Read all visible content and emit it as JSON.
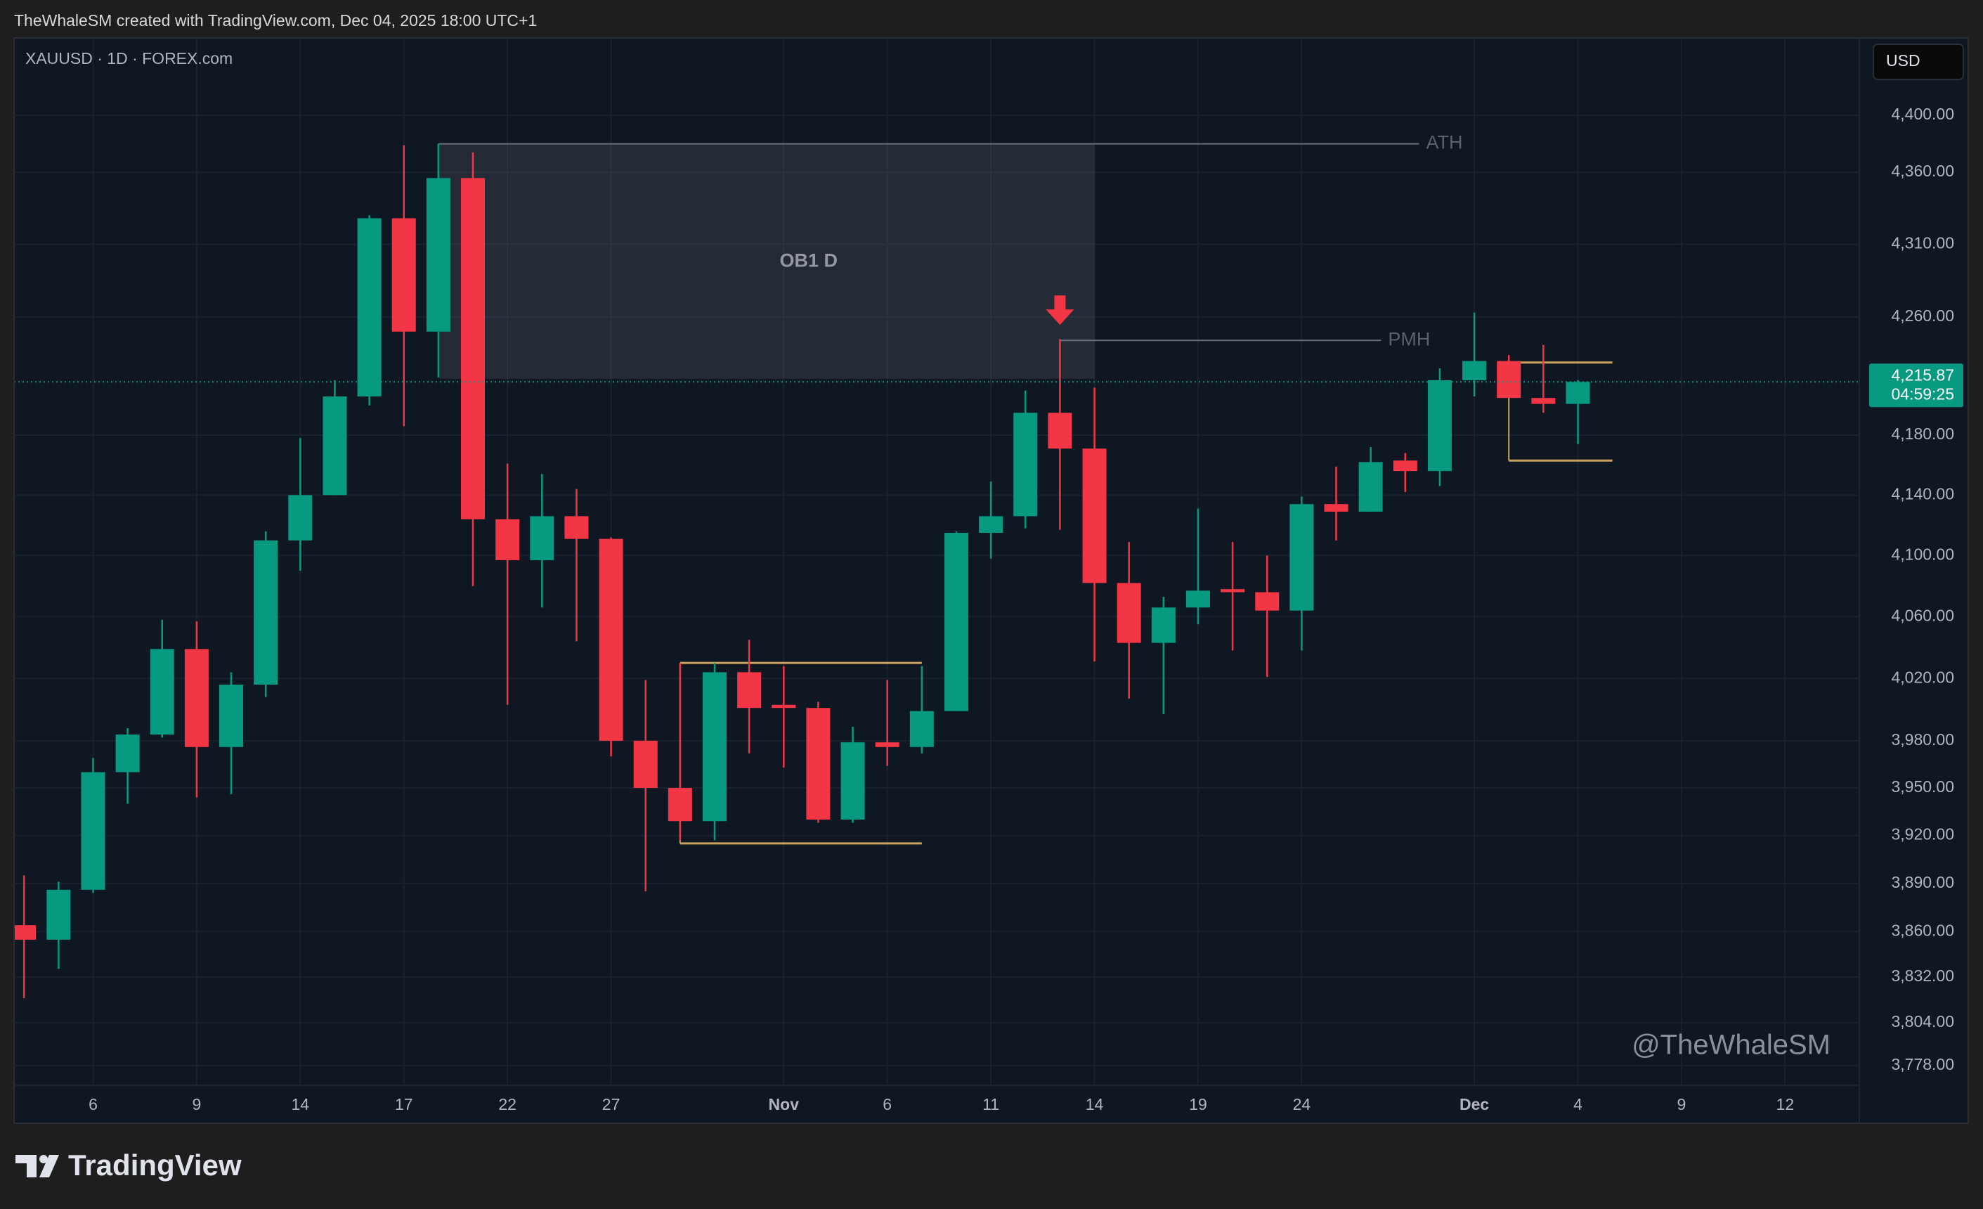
{
  "header": "TheWhaleSM created with TradingView.com, Dec 04, 2025 18:00 UTC+1",
  "footer_logo": "TradingView",
  "chart_data": {
    "type": "candlestick",
    "title": "XAUUSD · 1D · FOREX.com",
    "currency_button": "USD",
    "watermark": "@TheWhaleSM",
    "log_scale": true,
    "grid": true,
    "up_color": "#089981",
    "down_color": "#f23645",
    "categories": [
      null,
      null,
      "6",
      null,
      null,
      "9",
      null,
      null,
      "14",
      null,
      null,
      "17",
      null,
      null,
      "22",
      null,
      null,
      "27",
      null,
      null,
      null,
      null,
      "Nov",
      null,
      null,
      "6",
      null,
      null,
      "11",
      null,
      null,
      "14",
      null,
      null,
      "19",
      null,
      null,
      "24",
      null,
      null,
      null,
      null,
      "Dec",
      null,
      null,
      "4",
      null,
      null,
      "9",
      null,
      null,
      "12"
    ],
    "open": [
      3864,
      3855,
      3886,
      3960,
      3984,
      4039,
      3976,
      4016,
      4110,
      4140,
      4206,
      4328,
      4250,
      4356,
      4124,
      4097,
      4126,
      4111,
      3980,
      3950,
      3929,
      4024,
      4003,
      4001,
      3930,
      3979,
      3976,
      3999,
      4115,
      4126,
      4195,
      4171,
      4082,
      4043,
      4066,
      4078,
      4076,
      4064,
      4134,
      4129,
      4163,
      4156,
      4217,
      4230,
      4205,
      4201,
      null,
      null,
      null,
      null,
      null,
      null
    ],
    "high": [
      3895,
      3891,
      3969,
      3988,
      4058,
      4057,
      4024,
      4116,
      4178,
      4217,
      4330,
      4379,
      4380,
      4374,
      4161,
      4154,
      4144,
      4112,
      4019,
      4030,
      4030,
      4045,
      4028,
      4005,
      3989,
      4019,
      4028,
      4116,
      4149,
      4210,
      4245,
      4212,
      4109,
      4073,
      4131,
      4109,
      4100,
      4139,
      4159,
      4172,
      4168,
      4225,
      4263,
      4234,
      4241,
      4217,
      null,
      null,
      null,
      null,
      null,
      null
    ],
    "low": [
      3819,
      3837,
      3884,
      3940,
      3982,
      3944,
      3946,
      4008,
      4090,
      4140,
      4200,
      4186,
      4219,
      4080,
      4003,
      4066,
      4044,
      3970,
      3885,
      3917,
      3917,
      3972,
      3963,
      3928,
      3928,
      3964,
      3972,
      3999,
      4098,
      4118,
      4117,
      4031,
      4007,
      3997,
      4055,
      4038,
      4021,
      4038,
      4110,
      4129,
      4142,
      4146,
      4206,
      4205,
      4195,
      4174,
      null,
      null,
      null,
      null,
      null,
      null
    ],
    "close": [
      3855,
      3886,
      3960,
      3984,
      4039,
      3976,
      4016,
      4110,
      4140,
      4206,
      4328,
      4250,
      4356,
      4124,
      4097,
      4126,
      4111,
      3980,
      3950,
      3929,
      4024,
      4001,
      4001,
      3930,
      3979,
      3976,
      3999,
      4115,
      4126,
      4195,
      4171,
      4082,
      4043,
      4066,
      4077,
      4076,
      4064,
      4134,
      4129,
      4162,
      4156,
      4217,
      4230,
      4205,
      4201,
      4215.87,
      null,
      null,
      null,
      null,
      null,
      null
    ],
    "current_price": {
      "value": 4215.87,
      "label": "4,215.87"
    },
    "countdown": "04:59:25",
    "ylim": [
      3766,
      4455
    ],
    "yticks": [
      {
        "value": 4400,
        "label": "4,400.00"
      },
      {
        "value": 4360,
        "label": "4,360.00"
      },
      {
        "value": 4310,
        "label": "4,310.00"
      },
      {
        "value": 4260,
        "label": "4,260.00"
      },
      {
        "value": 4180,
        "label": "4,180.00"
      },
      {
        "value": 4140,
        "label": "4,140.00"
      },
      {
        "value": 4100,
        "label": "4,100.00"
      },
      {
        "value": 4060,
        "label": "4,060.00"
      },
      {
        "value": 4020,
        "label": "4,020.00"
      },
      {
        "value": 3980,
        "label": "3,980.00"
      },
      {
        "value": 3950,
        "label": "3,950.00"
      },
      {
        "value": 3920,
        "label": "3,920.00"
      },
      {
        "value": 3890,
        "label": "3,890.00"
      },
      {
        "value": 3860,
        "label": "3,860.00"
      },
      {
        "value": 3832,
        "label": "3,832.00"
      },
      {
        "value": 3804,
        "label": "3,804.00"
      },
      {
        "value": 3778,
        "label": "3,778.00"
      }
    ],
    "zone": {
      "label": "OB1 D",
      "top": 4380,
      "bottom": 4218
    },
    "levels": [
      {
        "label": "ATH",
        "value": 4380
      },
      {
        "label": "PMH",
        "value": 4244
      }
    ],
    "ranges": [
      {
        "top": 4030,
        "bottom": 3915
      },
      {
        "top": 4229,
        "bottom": 4163
      }
    ],
    "range_color": "#c9a35e"
  }
}
